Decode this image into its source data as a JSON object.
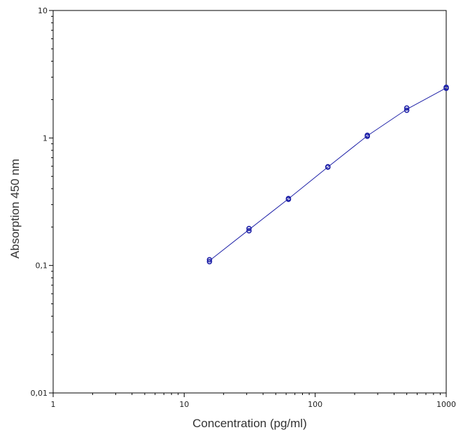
{
  "chart_data": {
    "type": "scatter",
    "title": "",
    "xlabel": "Concentration (pg/ml)",
    "ylabel": "Absorption 450 nm",
    "x_scale": "log",
    "y_scale": "log",
    "xlim": [
      1,
      1000
    ],
    "ylim": [
      0.01,
      10
    ],
    "x_ticks": [
      {
        "value": 1,
        "label": "1"
      },
      {
        "value": 10,
        "label": "10"
      },
      {
        "value": 100,
        "label": "100"
      },
      {
        "value": 1000,
        "label": "1000"
      }
    ],
    "y_ticks": [
      {
        "value": 0.01,
        "label": "0,01"
      },
      {
        "value": 0.1,
        "label": "0,1"
      },
      {
        "value": 1,
        "label": "1"
      },
      {
        "value": 10,
        "label": "10"
      }
    ],
    "grid": false,
    "legend": "none",
    "series": [
      {
        "points": [
          {
            "x": 15.6,
            "y": 0.107
          },
          {
            "x": 15.6,
            "y": 0.111
          },
          {
            "x": 31.25,
            "y": 0.187
          },
          {
            "x": 31.25,
            "y": 0.195
          },
          {
            "x": 62.5,
            "y": 0.33
          },
          {
            "x": 62.5,
            "y": 0.335
          },
          {
            "x": 125,
            "y": 0.59
          },
          {
            "x": 125,
            "y": 0.595
          },
          {
            "x": 250,
            "y": 1.03
          },
          {
            "x": 250,
            "y": 1.05
          },
          {
            "x": 500,
            "y": 1.65
          },
          {
            "x": 500,
            "y": 1.72
          },
          {
            "x": 1000,
            "y": 2.45
          },
          {
            "x": 1000,
            "y": 2.5
          }
        ],
        "fit_line": {
          "x": [
            15.6,
            31.25,
            62.5,
            125,
            250,
            500,
            1000
          ],
          "y": [
            0.109,
            0.191,
            0.333,
            0.592,
            1.04,
            1.68,
            2.47
          ]
        }
      }
    ],
    "colors": {
      "series": "#1f22a8",
      "axis": "#000000"
    }
  }
}
